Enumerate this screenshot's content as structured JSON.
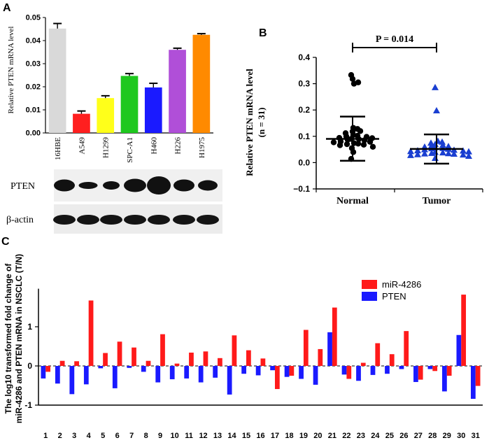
{
  "panels": {
    "A": {
      "label": "A",
      "chart_data": {
        "type": "bar",
        "ylabel": "Relative PTEN mRNA level",
        "ylim": [
          0,
          0.05
        ],
        "yticks": [
          "0.00",
          "0.01",
          "0.02",
          "0.03",
          "0.04",
          "0.05"
        ],
        "ytick_values": [
          0,
          0.01,
          0.02,
          0.03,
          0.04,
          0.05
        ],
        "categories": [
          "16HBE",
          "A549",
          "H1299",
          "SPC-A1",
          "H460",
          "H226",
          "H1975"
        ],
        "values": [
          0.0452,
          0.0083,
          0.0151,
          0.0247,
          0.0197,
          0.036,
          0.0425
        ],
        "errors": [
          0.0022,
          0.0012,
          0.001,
          0.001,
          0.0018,
          0.0007,
          0.0005
        ],
        "colors": [
          "#d9d9d9",
          "#ff1f1f",
          "#ffff1a",
          "#1ec81e",
          "#1a1aff",
          "#b04fd8",
          "#ff8a00"
        ]
      },
      "blot": {
        "rows": [
          "PTEN",
          "β-actin"
        ]
      }
    },
    "B": {
      "label": "B",
      "chart_data": {
        "type": "scatter",
        "ylabel_line1": "Relative PTEN mRNA level",
        "ylabel_line2": "(n = 31)",
        "ylim": [
          -0.1,
          0.4
        ],
        "yticks": [
          "−0.1",
          "0.0",
          "0.1",
          "0.2",
          "0.3",
          "0.4"
        ],
        "ytick_values": [
          -0.1,
          0,
          0.1,
          0.2,
          0.3,
          0.4
        ],
        "categories": [
          "Normal",
          "Tumor"
        ],
        "significance": "P = 0.014",
        "series": [
          {
            "name": "Normal",
            "marker": "circle",
            "mean": 0.09,
            "sd_upper": 0.175,
            "sd_lower": 0.007,
            "values": [
              0.333,
              0.318,
              0.3,
              0.305,
              0.132,
              0.128,
              0.118,
              0.12,
              0.112,
              0.105,
              0.102,
              0.1,
              0.098,
              0.094,
              0.093,
              0.09,
              0.089,
              0.087,
              0.085,
              0.08,
              0.079,
              0.077,
              0.074,
              0.072,
              0.07,
              0.068,
              0.066,
              0.06,
              0.055,
              0.04,
              0.014
            ]
          },
          {
            "name": "Tumor",
            "marker": "triangle",
            "mean": 0.052,
            "sd_upper": 0.107,
            "sd_lower": -0.004,
            "values": [
              0.286,
              0.198,
              0.082,
              0.079,
              0.075,
              0.07,
              0.067,
              0.065,
              0.062,
              0.06,
              0.058,
              0.055,
              0.054,
              0.052,
              0.05,
              0.048,
              0.046,
              0.045,
              0.043,
              0.042,
              0.04,
              0.038,
              0.036,
              0.035,
              0.034,
              0.033,
              0.031,
              0.03,
              0.028,
              0.025,
              0.017
            ]
          }
        ]
      }
    },
    "C": {
      "label": "C",
      "chart_data": {
        "type": "bar",
        "ylabel_line1": "The log10 transformed fold change of",
        "ylabel_line2": "miR-4286 and PTEN mRNA in NSCLC (T/N)",
        "ylim": [
          -1,
          2
        ],
        "yticks": [
          "-1",
          "0",
          "1"
        ],
        "ytick_values": [
          -1,
          0,
          1
        ],
        "categories": [
          "1",
          "2",
          "3",
          "4",
          "5",
          "6",
          "7",
          "8",
          "9",
          "10",
          "11",
          "12",
          "13",
          "14",
          "15",
          "16",
          "17",
          "18",
          "19",
          "20",
          "21",
          "22",
          "23",
          "24",
          "25",
          "26",
          "27",
          "28",
          "29",
          "30",
          "31"
        ],
        "series": [
          {
            "name": "miR-4286",
            "color": "#ff1a1a",
            "values": [
              -0.15,
              0.13,
              0.12,
              1.67,
              0.33,
              0.62,
              0.47,
              0.13,
              0.81,
              0.06,
              0.34,
              0.37,
              0.2,
              0.78,
              0.4,
              0.19,
              -0.59,
              -0.25,
              0.92,
              0.43,
              1.49,
              -0.33,
              0.08,
              0.58,
              0.3,
              0.89,
              -0.35,
              -0.13,
              -0.25,
              1.82,
              -0.51
            ]
          },
          {
            "name": "PTEN",
            "color": "#1a1aff",
            "values": [
              -0.32,
              -0.45,
              -0.72,
              -0.47,
              -0.06,
              -0.57,
              -0.05,
              -0.15,
              -0.42,
              -0.34,
              -0.32,
              -0.42,
              -0.3,
              -0.73,
              -0.2,
              -0.24,
              -0.11,
              -0.28,
              -0.33,
              -0.48,
              0.86,
              -0.22,
              -0.38,
              -0.23,
              -0.2,
              -0.08,
              -0.41,
              -0.08,
              -0.65,
              0.79,
              -0.84
            ]
          }
        ]
      }
    }
  }
}
